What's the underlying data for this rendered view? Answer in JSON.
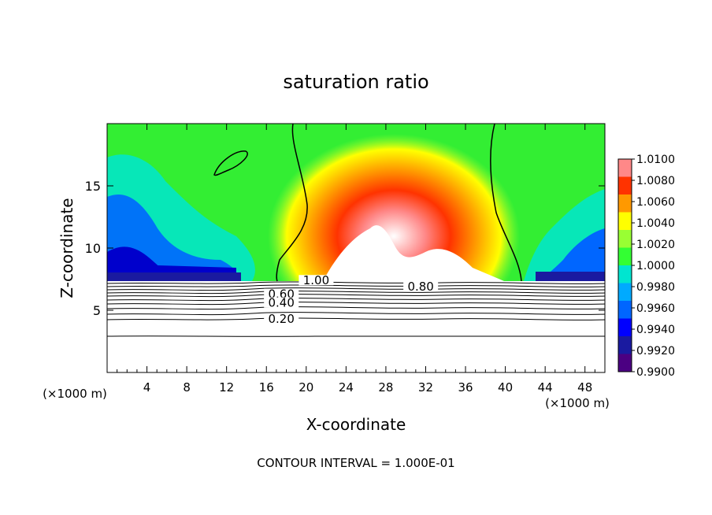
{
  "chart_data": {
    "type": "heatmap",
    "title": "saturation ratio",
    "xlabel": "X-coordinate",
    "ylabel": "Z-coordinate",
    "x_unit": "(×1000 m)",
    "y_unit": "(×1000 m)",
    "xlim": [
      0,
      50
    ],
    "ylim": [
      0,
      20
    ],
    "x_ticks": [
      4,
      8,
      12,
      16,
      20,
      24,
      28,
      32,
      36,
      40,
      44,
      48
    ],
    "y_ticks": [
      5,
      10,
      15
    ],
    "footer": "CONTOUR INTERVAL = 1.000E-01",
    "colorbar": {
      "levels": [
        "0.9900",
        "0.9920",
        "0.9940",
        "0.9960",
        "0.9980",
        "1.0000",
        "1.0020",
        "1.0040",
        "1.0060",
        "1.0080",
        "1.0100"
      ],
      "colors": [
        "#4b0082",
        "#1a1aa0",
        "#0000ff",
        "#0066ff",
        "#00aaff",
        "#00e5d0",
        "#33ff33",
        "#99ff33",
        "#ffff00",
        "#ff9900",
        "#ff3300",
        "#ff8888"
      ]
    },
    "contour_labels": [
      {
        "text": "1.00",
        "x": 21,
        "z": 7.2
      },
      {
        "text": "0.80",
        "x": 31.5,
        "z": 6.7
      },
      {
        "text": "0.60",
        "x": 17.5,
        "z": 6.1
      },
      {
        "text": "0.40",
        "x": 17.5,
        "z": 5.4
      },
      {
        "text": "0.20",
        "x": 17.5,
        "z": 4.1
      }
    ]
  }
}
